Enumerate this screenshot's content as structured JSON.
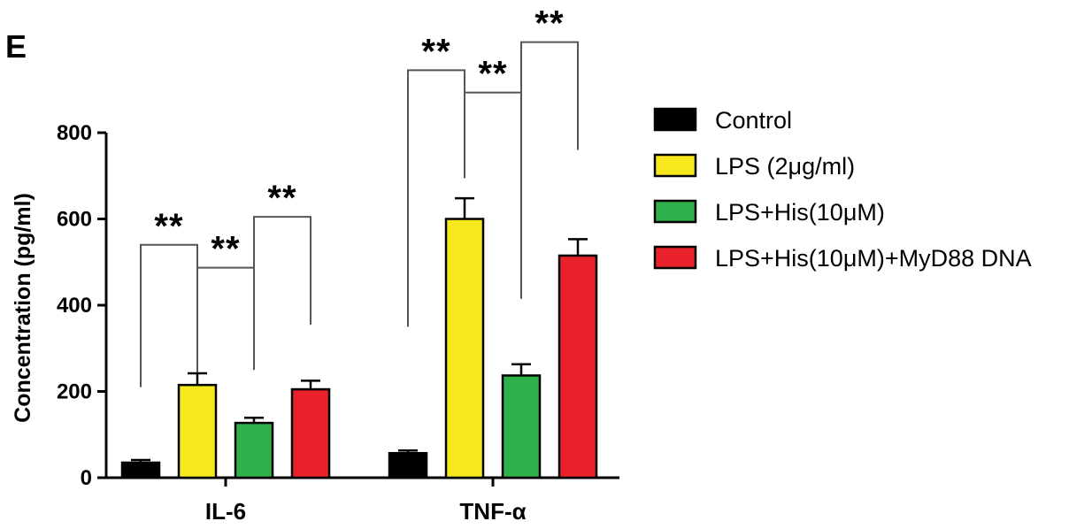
{
  "panel_label": "E",
  "chart_data": {
    "type": "bar",
    "title": "",
    "xlabel": "",
    "ylabel": "Concentration (pg/ml)",
    "ylim": [
      0,
      800
    ],
    "yticks": [
      0,
      200,
      400,
      600,
      800
    ],
    "categories": [
      "IL-6",
      "TNF-α"
    ],
    "legend_position": "right",
    "series": [
      {
        "name": "Control",
        "color": "#000000",
        "values": [
          35,
          57
        ],
        "errors": [
          6,
          6
        ]
      },
      {
        "name": "LPS (2μg/ml)",
        "color": "#f7e81e",
        "values": [
          215,
          600
        ],
        "errors": [
          27,
          48
        ]
      },
      {
        "name": "LPS+His(10μM)",
        "color": "#2fb04a",
        "values": [
          127,
          237
        ],
        "errors": [
          12,
          26
        ]
      },
      {
        "name": "LPS+His(10μM)+MyD88 DNA",
        "color": "#e9212a",
        "values": [
          205,
          515
        ],
        "errors": [
          20,
          38
        ]
      }
    ],
    "annotations": [
      {
        "category": 0,
        "from_series": 0,
        "to_series": 1,
        "label": "**",
        "y": 540,
        "left_end": 210,
        "right_end": 245
      },
      {
        "category": 0,
        "from_series": 1,
        "to_series": 2,
        "label": "**",
        "y": 487,
        "left_end": 245,
        "right_end": 250
      },
      {
        "category": 0,
        "from_series": 2,
        "to_series": 3,
        "label": "**",
        "y": 605,
        "left_end": 250,
        "right_end": 355
      },
      {
        "category": 1,
        "from_series": 0,
        "to_series": 1,
        "label": "**",
        "y": 945,
        "left_end": 350,
        "right_end": 695
      },
      {
        "category": 1,
        "from_series": 1,
        "to_series": 2,
        "label": "**",
        "y": 893,
        "left_end": 695,
        "right_end": 415
      },
      {
        "category": 1,
        "from_series": 2,
        "to_series": 3,
        "label": "**",
        "y": 1010,
        "left_end": 420,
        "right_end": 760
      }
    ]
  }
}
